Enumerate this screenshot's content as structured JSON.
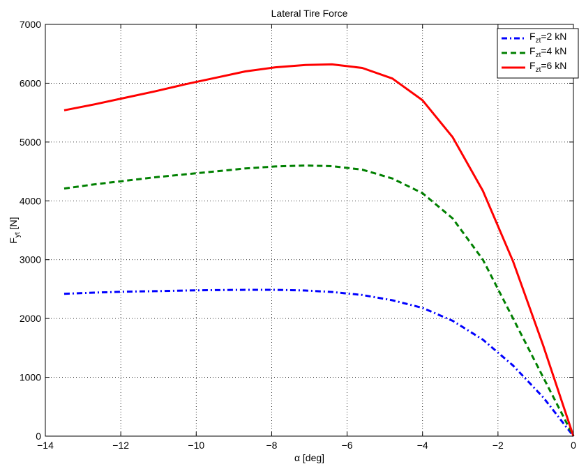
{
  "chart_data": {
    "type": "line",
    "title": "Lateral Tire Force",
    "xlabel": "α [deg]",
    "ylabel": {
      "main": "F",
      "sub": "yt",
      "unit": " [N]"
    },
    "xlim": [
      -14,
      0
    ],
    "ylim": [
      0,
      7000
    ],
    "xticks": [
      -14,
      -12,
      -10,
      -8,
      -6,
      -4,
      -2,
      0
    ],
    "yticks": [
      0,
      1000,
      2000,
      3000,
      4000,
      5000,
      6000,
      7000
    ],
    "xtick_labels": [
      "−14",
      "−12",
      "−10",
      "−8",
      "−6",
      "−4",
      "−2",
      "0"
    ],
    "ytick_labels": [
      "0",
      "1000",
      "2000",
      "3000",
      "4000",
      "5000",
      "6000",
      "7000"
    ],
    "grid": true,
    "legend_position": "top-right",
    "x": [
      -13.5,
      -12.7,
      -11.9,
      -11.1,
      -10.3,
      -9.5,
      -8.7,
      -7.9,
      -7.1,
      -6.4,
      -5.6,
      -4.8,
      -4.0,
      -3.2,
      -2.4,
      -1.6,
      -0.8,
      0
    ],
    "series": [
      {
        "name": {
          "main": "F",
          "sub": "zt",
          "rest": "=2 kN"
        },
        "color": "#0000ff",
        "style": "dash-dot",
        "values": [
          2420,
          2440,
          2455,
          2465,
          2475,
          2483,
          2487,
          2487,
          2475,
          2450,
          2400,
          2310,
          2180,
          1960,
          1640,
          1200,
          660,
          0
        ]
      },
      {
        "name": {
          "main": "F",
          "sub": "zt",
          "rest": "=4 kN"
        },
        "color": "#008000",
        "style": "dashed",
        "values": [
          4210,
          4280,
          4340,
          4400,
          4450,
          4500,
          4550,
          4585,
          4600,
          4590,
          4530,
          4380,
          4130,
          3700,
          3000,
          2000,
          1000,
          0
        ]
      },
      {
        "name": {
          "main": "F",
          "sub": "zt",
          "rest": "=6 kN"
        },
        "color": "#ff0000",
        "style": "solid",
        "values": [
          5540,
          5640,
          5750,
          5860,
          5980,
          6090,
          6200,
          6270,
          6310,
          6320,
          6260,
          6080,
          5710,
          5080,
          4170,
          2970,
          1540,
          0
        ]
      }
    ]
  }
}
